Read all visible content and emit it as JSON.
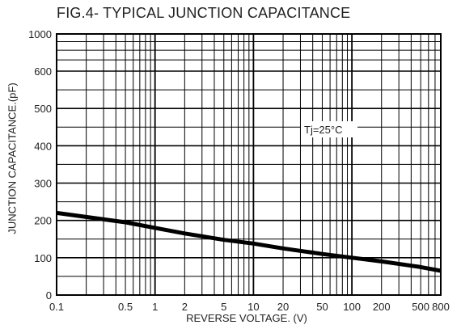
{
  "chart_data": {
    "type": "line",
    "title": "FIG.4- TYPICAL JUNCTION CAPACITANCE",
    "xlabel": "REVERSE VOLTAGE. (V)",
    "ylabel": "JUNCTION CAPACITANCE.(pF)",
    "xscale": "log",
    "xlim": [
      0.1,
      800
    ],
    "ylim": [
      0,
      1000
    ],
    "grid": true,
    "x_tick_labels": [
      "0.1",
      "0.5",
      "1",
      "2",
      "5",
      "10",
      "20",
      "50",
      "100",
      "200",
      "500",
      "800"
    ],
    "x_tick_values": [
      0.1,
      0.5,
      1,
      2,
      5,
      10,
      20,
      50,
      100,
      200,
      500,
      800
    ],
    "y_tick_labels": [
      "0",
      "100",
      "200",
      "300",
      "400",
      "500",
      "600",
      "1000"
    ],
    "y_tick_values": [
      0,
      100,
      200,
      300,
      400,
      500,
      600,
      1000
    ],
    "annotation": "Tj=25°C",
    "series": [
      {
        "x": [
          0.1,
          0.5,
          1,
          2,
          5,
          10,
          20,
          50,
          100,
          200,
          500,
          800
        ],
        "y": [
          220,
          195,
          180,
          165,
          148,
          138,
          125,
          110,
          100,
          90,
          75,
          65
        ]
      }
    ],
    "colors": {
      "line": "#000000",
      "grid": "#000000",
      "background": "#ffffff"
    }
  }
}
